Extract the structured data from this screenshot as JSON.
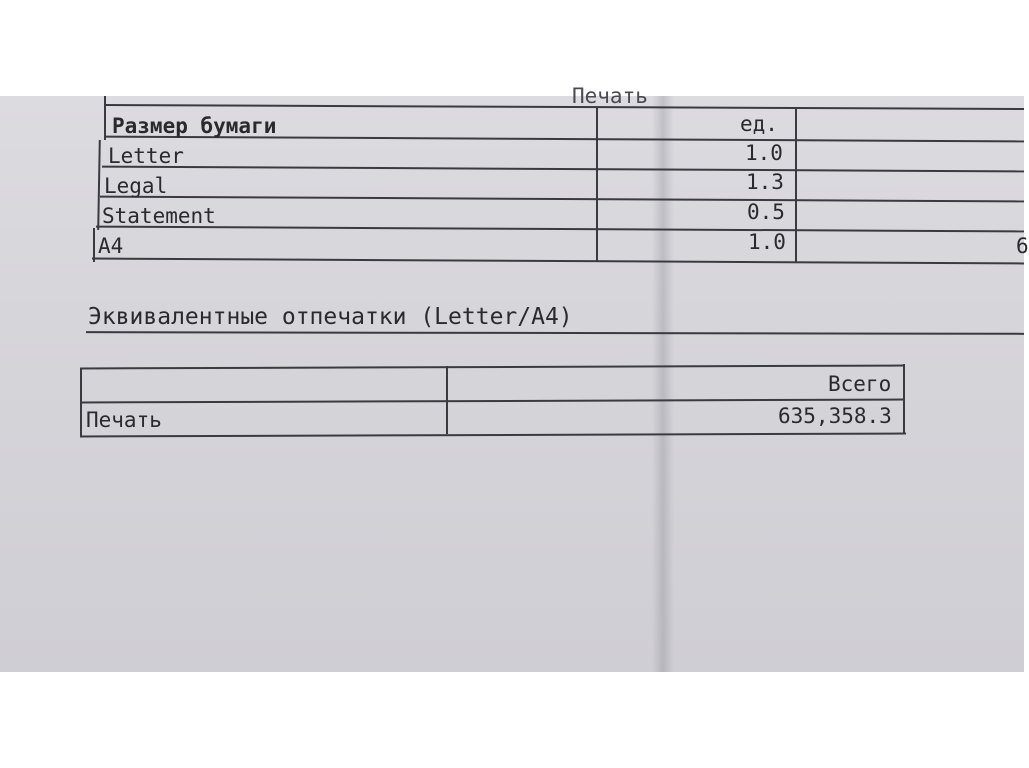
{
  "top_partial_heading": "Печать",
  "paper_table": {
    "headers": [
      "Размер бумаги",
      "ед."
    ],
    "rows": [
      {
        "size": "Letter",
        "unit": "1.0"
      },
      {
        "size": "Legal",
        "unit": "1.3"
      },
      {
        "size": "Statement",
        "unit": "0.5"
      },
      {
        "size": "A4",
        "unit": "1.0",
        "partial": "6"
      }
    ]
  },
  "section_title": "Эквивалентные отпечатки (Letter/A4)",
  "equiv_table": {
    "header": "Всего",
    "row_label": "Печать",
    "row_value": "635,358.3"
  }
}
